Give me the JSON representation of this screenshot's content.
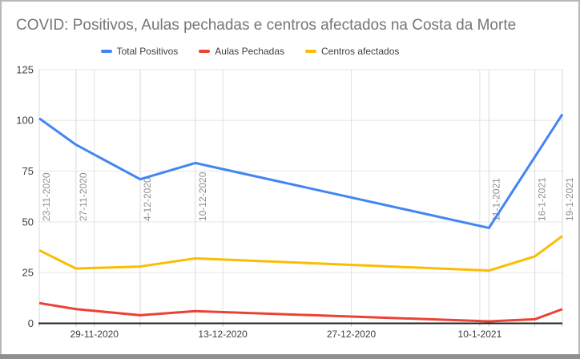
{
  "chart_data": {
    "type": "line",
    "title": "COVID: Positivos, Aulas pechadas e centros afectados na Costa da Morte",
    "xlabel": "",
    "ylabel": "",
    "ylim": [
      0,
      125
    ],
    "y_ticks": [
      0,
      25,
      50,
      75,
      100,
      125
    ],
    "grid": true,
    "legend_position": "top",
    "x_type": "time",
    "points": [
      {
        "label": "23-11-2020",
        "day": 0
      },
      {
        "label": "27-11-2020",
        "day": 4
      },
      {
        "label": "4-12-2020",
        "day": 11
      },
      {
        "label": "10-12-2020",
        "day": 17
      },
      {
        "label": "11-1-2021",
        "day": 49
      },
      {
        "label": "16-1-2021",
        "day": 54
      },
      {
        "label": "19-1-2021",
        "day": 57
      }
    ],
    "x_ticks": [
      {
        "label": "29-11-2020",
        "day": 6
      },
      {
        "label": "13-12-2020",
        "day": 20
      },
      {
        "label": "27-12-2020",
        "day": 34
      },
      {
        "label": "10-1-2021",
        "day": 48
      }
    ],
    "series": [
      {
        "name": "Total Positivos",
        "color": "#4285F4",
        "values": [
          101,
          88,
          71,
          79,
          47,
          82,
          103
        ]
      },
      {
        "name": "Aulas Pechadas",
        "color": "#EA4335",
        "values": [
          10,
          7,
          4,
          6,
          1,
          2,
          7
        ]
      },
      {
        "name": "Centros afectados",
        "color": "#FBBC04",
        "values": [
          36,
          27,
          28,
          32,
          26,
          33,
          43
        ]
      }
    ],
    "annotations": [
      "23-11-2020",
      "27-11-2020",
      "4-12-2020",
      "10-12-2020",
      "11-1-2021",
      "16-1-2021",
      "19-1-2021"
    ]
  },
  "colors": {
    "title": "#757575",
    "axis_labels": "#3c4043",
    "annotation_labels": "#8f8f8f",
    "gridline": "#e6e6e6",
    "vertical_gridline": "#e2e2e2",
    "annotation_line": "#d9d9d9",
    "tick": "#bdbdbd",
    "axis_line": "#212121",
    "frame_border": "#b7b7b7",
    "bottom_bar": "#8f8f8f",
    "background": "#ffffff"
  }
}
